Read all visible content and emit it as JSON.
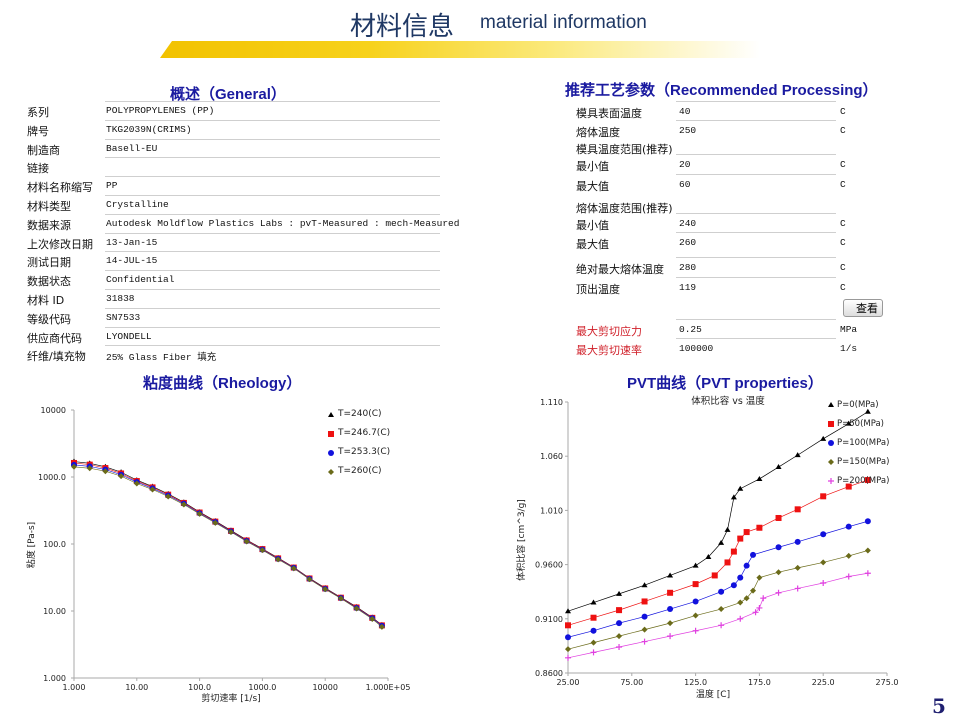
{
  "header": {
    "title_cn": "材料信息",
    "title_en": "material information"
  },
  "general": {
    "title": "概述（General）",
    "rows": [
      {
        "label": "系列",
        "value": "POLYPROPYLENES (PP)"
      },
      {
        "label": "牌号",
        "value": "TKG2039N(CRIMS)"
      },
      {
        "label": "制造商",
        "value": "Basell-EU"
      },
      {
        "label": "链接",
        "value": ""
      },
      {
        "label": "材料名称缩写",
        "value": "PP"
      },
      {
        "label": "材料类型",
        "value": "Crystalline"
      },
      {
        "label": "数据来源",
        "value": "Autodesk Moldflow Plastics Labs : pvT-Measured : mech-Measured"
      },
      {
        "label": "上次修改日期",
        "value": "13-Jan-15"
      },
      {
        "label": "测试日期",
        "value": "14-JUL-15"
      },
      {
        "label": "数据状态",
        "value": "Confidential"
      },
      {
        "label": "材料 ID",
        "value": "31838"
      },
      {
        "label": "等级代码",
        "value": "SN7533"
      },
      {
        "label": "供应商代码",
        "value": "LYONDELL"
      },
      {
        "label": "纤维/填充物",
        "value": "25% Glass Fiber 填充"
      }
    ]
  },
  "processing": {
    "title": "推荐工艺参数（Recommended Processing）",
    "rows": [
      {
        "label": "模具表面温度",
        "value": "40",
        "unit": "C"
      },
      {
        "label": "熔体温度",
        "value": "250",
        "unit": "C"
      },
      {
        "label": "模具温度范围(推荐)",
        "value": "",
        "unit": ""
      },
      {
        "label": "最小值",
        "value": "20",
        "unit": "C"
      },
      {
        "label": "最大值",
        "value": "60",
        "unit": "C"
      },
      {
        "label": "熔体温度范围(推荐)",
        "value": "",
        "unit": ""
      },
      {
        "label": "最小值",
        "value": "240",
        "unit": "C"
      },
      {
        "label": "最大值",
        "value": "260",
        "unit": "C"
      },
      {
        "label": "绝对最大熔体温度",
        "value": "280",
        "unit": "C"
      },
      {
        "label": "顶出温度",
        "value": "119",
        "unit": "C"
      },
      {
        "label": "最大剪切应力",
        "value": "0.25",
        "unit": "MPa"
      },
      {
        "label": "最大剪切速率",
        "value": "100000",
        "unit": "1/s"
      }
    ],
    "button_label": "查看"
  },
  "page_number": "5",
  "chart_data": [
    {
      "type": "scatter",
      "scale": "log-log",
      "section_title": "粘度曲线（Rheology）",
      "title": "",
      "xlabel": "剪切速率 [1/s]",
      "ylabel": "粘度 [Pa-s]",
      "xlim": [
        1,
        100000
      ],
      "ylim": [
        1,
        10000
      ],
      "xticks": [
        "1.000",
        "10.00",
        "100.0",
        "1000.0",
        "10000",
        "1.000E+05"
      ],
      "yticks": [
        "1.000",
        "10.00",
        "100.0",
        "1000.0",
        "10000"
      ],
      "legend": "top-right",
      "x": [
        1,
        1.78,
        3.16,
        5.62,
        10,
        17.8,
        31.6,
        56.2,
        100,
        178,
        316,
        562,
        1000,
        1780,
        3160,
        5620,
        10000,
        17800,
        31600,
        56200,
        80000
      ],
      "series": [
        {
          "name": "T=240(C)",
          "color": "#000000",
          "marker": "triangle",
          "values": [
            1700,
            1600,
            1420,
            1180,
            900,
            720,
            560,
            420,
            300,
            220,
            160,
            115,
            85,
            62,
            45,
            31,
            22,
            16,
            11.5,
            8,
            6.2
          ]
        },
        {
          "name": "T=246.7(C)",
          "color": "#ee1111",
          "marker": "square",
          "values": [
            1620,
            1530,
            1360,
            1130,
            870,
            700,
            545,
            410,
            295,
            216,
            157,
            113,
            84,
            61,
            44.5,
            30.6,
            21.7,
            15.8,
            11.3,
            7.9,
            6.1
          ]
        },
        {
          "name": "T=253.3(C)",
          "color": "#1111dd",
          "marker": "circle",
          "values": [
            1520,
            1440,
            1290,
            1080,
            840,
            675,
            530,
            400,
            288,
            212,
            154,
            111,
            82.5,
            60,
            44,
            30.2,
            21.4,
            15.6,
            11.1,
            7.8,
            6.0
          ]
        },
        {
          "name": "T=260(C)",
          "color": "#6b6b1a",
          "marker": "diamond",
          "values": [
            1420,
            1350,
            1220,
            1030,
            800,
            650,
            512,
            388,
            281,
            207,
            151,
            109,
            81,
            59,
            43.2,
            29.8,
            21.1,
            15.4,
            10.9,
            7.6,
            5.8
          ]
        }
      ]
    },
    {
      "type": "line",
      "section_title": "PVT曲线（PVT properties）",
      "title": "体积比容 vs 温度",
      "xlabel": "温度 [C]",
      "ylabel": "体积比容 [cm^3/g]",
      "xlim": [
        25,
        275
      ],
      "ylim": [
        0.86,
        1.11
      ],
      "xticks": [
        "25.00",
        "75.00",
        "125.0",
        "175.0",
        "225.0",
        "275.0"
      ],
      "yticks": [
        "0.8600",
        "0.9100",
        "0.9600",
        "1.010",
        "1.060",
        "1.110"
      ],
      "legend": "top-right",
      "series": [
        {
          "name": "P=0(MPa)",
          "color": "#000000",
          "marker": "triangle",
          "points": [
            [
              25,
              0.917
            ],
            [
              45,
              0.925
            ],
            [
              65,
              0.933
            ],
            [
              85,
              0.941
            ],
            [
              105,
              0.95
            ],
            [
              125,
              0.959
            ],
            [
              135,
              0.967
            ],
            [
              145,
              0.98
            ],
            [
              150,
              0.992
            ],
            [
              155,
              1.022
            ],
            [
              160,
              1.03
            ],
            [
              175,
              1.039
            ],
            [
              190,
              1.05
            ],
            [
              205,
              1.061
            ],
            [
              225,
              1.076
            ],
            [
              245,
              1.09
            ],
            [
              260,
              1.101
            ]
          ]
        },
        {
          "name": "P=50(MPa)",
          "color": "#ee1111",
          "marker": "square",
          "points": [
            [
              25,
              0.904
            ],
            [
              45,
              0.911
            ],
            [
              65,
              0.918
            ],
            [
              85,
              0.926
            ],
            [
              105,
              0.934
            ],
            [
              125,
              0.942
            ],
            [
              140,
              0.95
            ],
            [
              150,
              0.962
            ],
            [
              155,
              0.972
            ],
            [
              160,
              0.984
            ],
            [
              165,
              0.99
            ],
            [
              175,
              0.994
            ],
            [
              190,
              1.003
            ],
            [
              205,
              1.011
            ],
            [
              225,
              1.023
            ],
            [
              245,
              1.032
            ],
            [
              260,
              1.038
            ]
          ]
        },
        {
          "name": "P=100(MPa)",
          "color": "#1111dd",
          "marker": "circle",
          "points": [
            [
              25,
              0.893
            ],
            [
              45,
              0.899
            ],
            [
              65,
              0.906
            ],
            [
              85,
              0.912
            ],
            [
              105,
              0.919
            ],
            [
              125,
              0.926
            ],
            [
              145,
              0.935
            ],
            [
              155,
              0.941
            ],
            [
              160,
              0.948
            ],
            [
              165,
              0.959
            ],
            [
              170,
              0.969
            ],
            [
              190,
              0.976
            ],
            [
              205,
              0.981
            ],
            [
              225,
              0.988
            ],
            [
              245,
              0.995
            ],
            [
              260,
              1.0
            ]
          ]
        },
        {
          "name": "P=150(MPa)",
          "color": "#6b6b1a",
          "marker": "diamond",
          "points": [
            [
              25,
              0.882
            ],
            [
              45,
              0.888
            ],
            [
              65,
              0.894
            ],
            [
              85,
              0.9
            ],
            [
              105,
              0.906
            ],
            [
              125,
              0.913
            ],
            [
              145,
              0.919
            ],
            [
              160,
              0.925
            ],
            [
              165,
              0.929
            ],
            [
              170,
              0.936
            ],
            [
              175,
              0.948
            ],
            [
              190,
              0.953
            ],
            [
              205,
              0.957
            ],
            [
              225,
              0.962
            ],
            [
              245,
              0.968
            ],
            [
              260,
              0.973
            ]
          ]
        },
        {
          "name": "P=200(MPa)",
          "color": "#e040e0",
          "marker": "plus",
          "points": [
            [
              25,
              0.874
            ],
            [
              45,
              0.879
            ],
            [
              65,
              0.884
            ],
            [
              85,
              0.889
            ],
            [
              105,
              0.894
            ],
            [
              125,
              0.899
            ],
            [
              145,
              0.904
            ],
            [
              160,
              0.91
            ],
            [
              172,
              0.916
            ],
            [
              175,
              0.92
            ],
            [
              178,
              0.929
            ],
            [
              190,
              0.934
            ],
            [
              205,
              0.938
            ],
            [
              225,
              0.943
            ],
            [
              245,
              0.949
            ],
            [
              260,
              0.952
            ]
          ]
        }
      ]
    }
  ]
}
